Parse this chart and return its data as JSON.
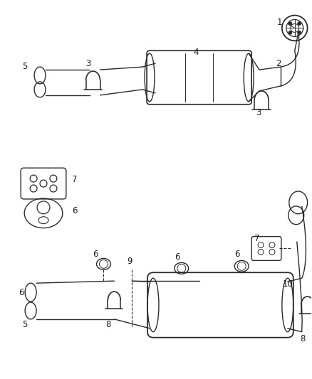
{
  "bg_color": "#ffffff",
  "line_color": "#2a2a2a",
  "label_color": "#1a1a1a",
  "lw": 1.0
}
